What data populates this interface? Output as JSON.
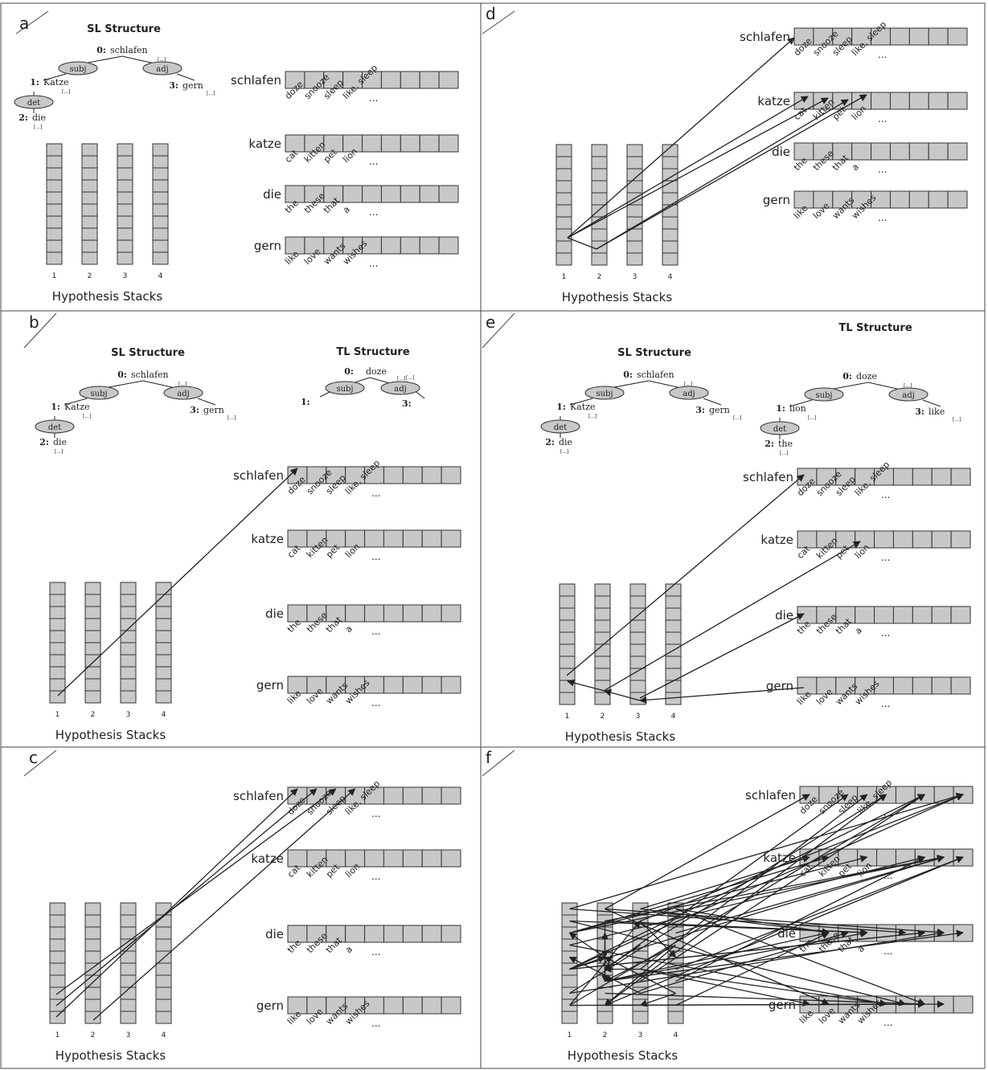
{
  "figure": {
    "panels": [
      {
        "id": "a",
        "letter": "a",
        "sl_title": "SL Structure",
        "tl_title": "",
        "caption": "Hypothesis Stacks"
      },
      {
        "id": "b",
        "letter": "b",
        "sl_title": "SL Structure",
        "tl_title": "TL Structure",
        "caption": "Hypothesis Stacks"
      },
      {
        "id": "c",
        "letter": "c",
        "sl_title": "",
        "tl_title": "",
        "caption": "Hypothesis Stacks"
      },
      {
        "id": "d",
        "letter": "d",
        "sl_title": "",
        "tl_title": "",
        "caption": "Hypothesis Stacks"
      },
      {
        "id": "e",
        "letter": "e",
        "sl_title": "SL Structure",
        "tl_title": "TL Structure",
        "caption": "Hypothesis Stacks"
      },
      {
        "id": "f",
        "letter": "f",
        "sl_title": "",
        "tl_title": "",
        "caption": "Hypothesis Stacks"
      }
    ],
    "source_words": [
      "schlafen",
      "katze",
      "die",
      "gern"
    ],
    "translation_options": [
      [
        "doze",
        "snooze",
        "sleep",
        "like, sleep",
        "..."
      ],
      [
        "cat",
        "kitten",
        "pet",
        "lion",
        "..."
      ],
      [
        "the",
        "these",
        "that",
        "a",
        "..."
      ],
      [
        "like",
        "love",
        "wants",
        "wishes",
        "..."
      ]
    ],
    "stack_numbers": [
      "1",
      "2",
      "3",
      "4"
    ],
    "sl_tree": {
      "root_index": "0",
      "root_word": "schlafen",
      "subj_label": "subj",
      "adj_label": "adj",
      "det_label": "det",
      "n1_index": "1",
      "n1_word": "Katze",
      "n3_index": "3",
      "n3_word": "gern",
      "n2_index": "2",
      "n2_word": "die",
      "elided": "[...]"
    },
    "tl_tree_b": {
      "root_index": "0",
      "root_word": "doze",
      "subj_label": "subj",
      "adj_label": "adj",
      "n1_index": "1",
      "n3_index": "3",
      "elided": "[...]"
    },
    "tl_tree_e": {
      "root_index": "0",
      "root_word": "doze",
      "subj_label": "subj",
      "adj_label": "adj",
      "det_label": "det",
      "n1_index": "1",
      "n1_word": "lion",
      "n3_index": "3",
      "n3_word": "like",
      "n2_index": "2",
      "n2_word": "the",
      "elided": "[...]"
    }
  }
}
